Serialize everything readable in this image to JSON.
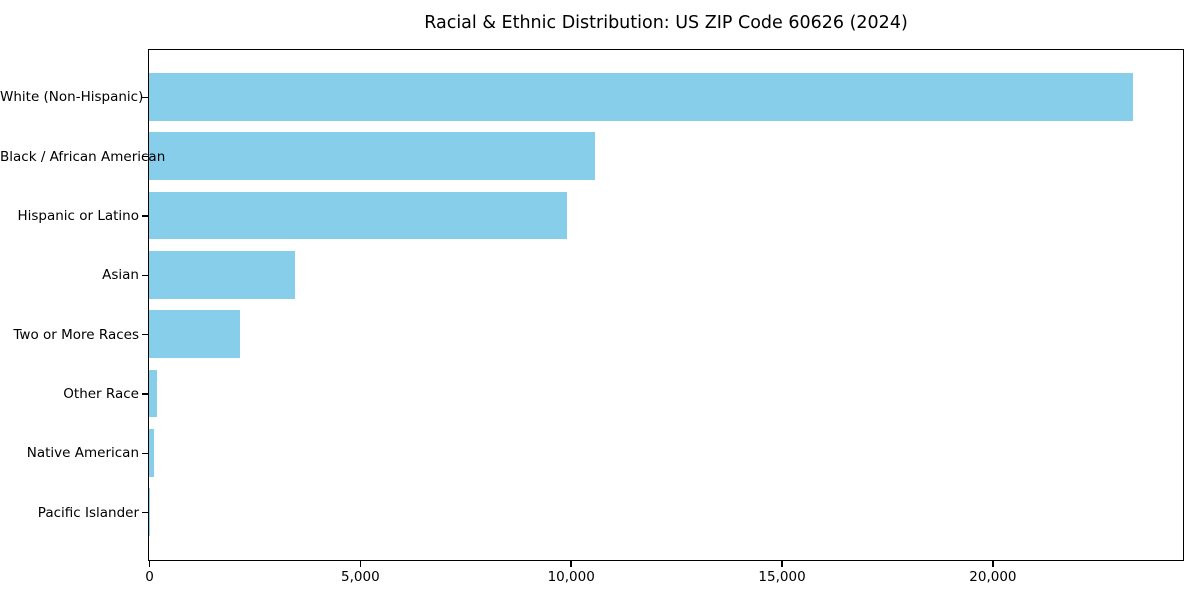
{
  "chart_data": {
    "type": "bar",
    "orientation": "horizontal",
    "title": "Racial & Ethnic Distribution: US ZIP Code 60626 (2024)",
    "categories": [
      "White (Non-Hispanic)",
      "Black / African American",
      "Hispanic or Latino",
      "Asian",
      "Two or More Races",
      "Other Race",
      "Native American",
      "Pacific Islander"
    ],
    "values": [
      23330,
      10580,
      9920,
      3470,
      2150,
      190,
      120,
      15
    ],
    "xlabel": "",
    "ylabel": "",
    "x_ticks": [
      0,
      5000,
      10000,
      15000,
      20000
    ],
    "x_tick_labels": [
      "0",
      "5,000",
      "10,000",
      "15,000",
      "20,000"
    ],
    "xlim": [
      0,
      24496
    ],
    "bar_color": "#87CEEB",
    "axis_color": "#000000",
    "text_color": "#000000",
    "background_color": "#ffffff",
    "grid": false,
    "legend": null
  }
}
